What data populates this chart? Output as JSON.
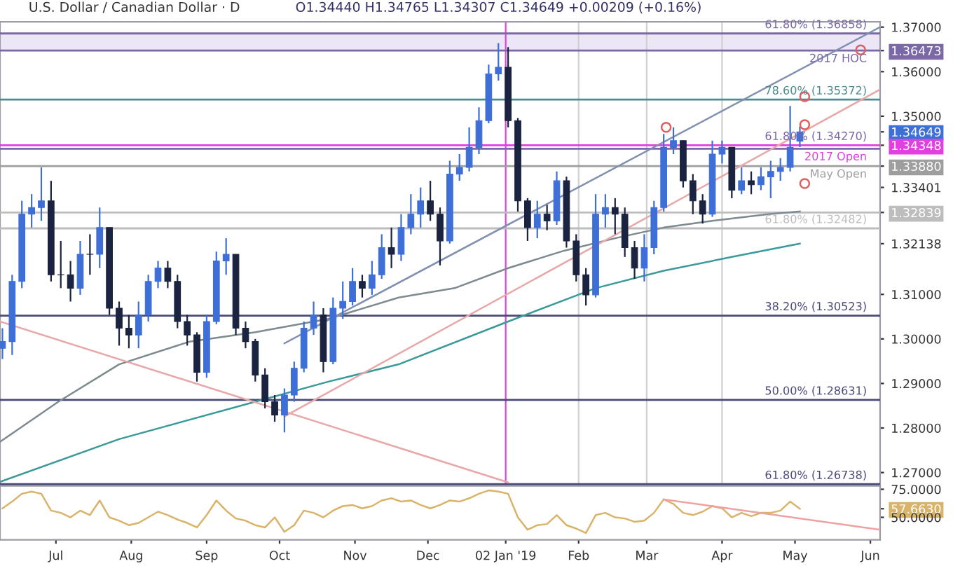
{
  "chart_data": [
    {
      "type": "candlestick",
      "title": "U.S. Dollar / Canadian Dollar · D",
      "subtitle": "O1.34440 H1.34765 L1.34307 C1.34649 +0.00209 (+0.16%)",
      "x": [
        "2018-06-09",
        "2018-06-13",
        "2018-06-17",
        "2018-06-21",
        "2018-06-25",
        "2018-06-29",
        "2018-07-03",
        "2018-07-07",
        "2018-07-11",
        "2018-07-15",
        "2018-07-19",
        "2018-07-23",
        "2018-07-27",
        "2018-07-31",
        "2018-08-04",
        "2018-08-08",
        "2018-08-12",
        "2018-08-16",
        "2018-08-20",
        "2018-08-24",
        "2018-08-28",
        "2018-09-01",
        "2018-09-05",
        "2018-09-09",
        "2018-09-13",
        "2018-09-17",
        "2018-09-21",
        "2018-09-25",
        "2018-09-29",
        "2018-10-03",
        "2018-10-07",
        "2018-10-11",
        "2018-10-15",
        "2018-10-19",
        "2018-10-23",
        "2018-10-27",
        "2018-10-31",
        "2018-11-04",
        "2018-11-08",
        "2018-11-12",
        "2018-11-16",
        "2018-11-20",
        "2018-11-24",
        "2018-11-28",
        "2018-12-02",
        "2018-12-06",
        "2018-12-10",
        "2018-12-14",
        "2018-12-18",
        "2018-12-22",
        "2018-12-26",
        "2018-12-30",
        "2019-01-03",
        "2019-01-07",
        "2019-01-11",
        "2019-01-15",
        "2019-01-19",
        "2019-01-23",
        "2019-01-27",
        "2019-01-31",
        "2019-02-04",
        "2019-02-08",
        "2019-02-12",
        "2019-02-16",
        "2019-02-20",
        "2019-02-24",
        "2019-02-28",
        "2019-03-04",
        "2019-03-08",
        "2019-03-12",
        "2019-03-16",
        "2019-03-20",
        "2019-03-24",
        "2019-03-28",
        "2019-04-01",
        "2019-04-05",
        "2019-04-09",
        "2019-04-13",
        "2019-04-17",
        "2019-04-21",
        "2019-04-25",
        "2019-04-29",
        "2019-05-03"
      ],
      "ohlc": [
        [
          1.2979,
          1.3024,
          1.2955,
          1.2994
        ],
        [
          1.2994,
          1.3144,
          1.2964,
          1.3129
        ],
        [
          1.3129,
          1.331,
          1.3114,
          1.328
        ],
        [
          1.328,
          1.3325,
          1.325,
          1.3295
        ],
        [
          1.3295,
          1.3385,
          1.3265,
          1.331
        ],
        [
          1.331,
          1.3355,
          1.3129,
          1.3144
        ],
        [
          1.3144,
          1.322,
          1.3114,
          1.3144
        ],
        [
          1.3144,
          1.3175,
          1.3084,
          1.3114
        ],
        [
          1.3114,
          1.322,
          1.3099,
          1.319
        ],
        [
          1.319,
          1.3235,
          1.3144,
          1.319
        ],
        [
          1.319,
          1.3295,
          1.3159,
          1.325
        ],
        [
          1.325,
          1.325,
          1.3054,
          1.3069
        ],
        [
          1.3069,
          1.3084,
          1.2985,
          1.3024
        ],
        [
          1.3024,
          1.3054,
          1.2979,
          1.3009
        ],
        [
          1.3009,
          1.3084,
          1.2979,
          1.3054
        ],
        [
          1.3054,
          1.3144,
          1.3039,
          1.3129
        ],
        [
          1.3129,
          1.3175,
          1.3114,
          1.3159
        ],
        [
          1.3159,
          1.3175,
          1.3114,
          1.3129
        ],
        [
          1.3129,
          1.3144,
          1.3024,
          1.3039
        ],
        [
          1.3039,
          1.3054,
          1.2985,
          1.3009
        ],
        [
          1.3009,
          1.3015,
          1.2904,
          1.2925
        ],
        [
          1.2925,
          1.3054,
          1.2913,
          1.3039
        ],
        [
          1.3039,
          1.3196,
          1.3033,
          1.3175
        ],
        [
          1.3175,
          1.3226,
          1.3144,
          1.319
        ],
        [
          1.319,
          1.319,
          1.3009,
          1.3024
        ],
        [
          1.3024,
          1.3039,
          1.2979,
          1.2994
        ],
        [
          1.2994,
          1.3,
          1.2904,
          1.2919
        ],
        [
          1.2919,
          1.2934,
          1.2844,
          1.2859
        ],
        [
          1.2859,
          1.2874,
          1.2814,
          1.2829
        ],
        [
          1.2829,
          1.2889,
          1.279,
          1.2874
        ],
        [
          1.2874,
          1.2949,
          1.2859,
          1.2934
        ],
        [
          1.2934,
          1.3039,
          1.2925,
          1.3024
        ],
        [
          1.3024,
          1.3084,
          1.3009,
          1.3054
        ],
        [
          1.3054,
          1.3069,
          1.2925,
          1.2949
        ],
        [
          1.2949,
          1.3093,
          1.2943,
          1.3069
        ],
        [
          1.3069,
          1.3129,
          1.3045,
          1.3084
        ],
        [
          1.3084,
          1.3159,
          1.3075,
          1.3129
        ],
        [
          1.3129,
          1.3144,
          1.3093,
          1.3114
        ],
        [
          1.3114,
          1.3175,
          1.3099,
          1.3144
        ],
        [
          1.3144,
          1.3235,
          1.3135,
          1.3205
        ],
        [
          1.3205,
          1.325,
          1.3159,
          1.319
        ],
        [
          1.319,
          1.328,
          1.3175,
          1.325
        ],
        [
          1.325,
          1.3325,
          1.3235,
          1.328
        ],
        [
          1.328,
          1.334,
          1.325,
          1.331
        ],
        [
          1.331,
          1.3355,
          1.3265,
          1.328
        ],
        [
          1.328,
          1.3295,
          1.3165,
          1.322
        ],
        [
          1.322,
          1.34,
          1.3214,
          1.337
        ],
        [
          1.337,
          1.3415,
          1.3355,
          1.3385
        ],
        [
          1.3385,
          1.3475,
          1.3376,
          1.343
        ],
        [
          1.343,
          1.352,
          1.3415,
          1.349
        ],
        [
          1.349,
          1.3616,
          1.3484,
          1.3595
        ],
        [
          1.3595,
          1.3664,
          1.358,
          1.361
        ],
        [
          1.361,
          1.3655,
          1.3475,
          1.349
        ],
        [
          1.349,
          1.3496,
          1.3286,
          1.331
        ],
        [
          1.331,
          1.3316,
          1.322,
          1.325
        ],
        [
          1.325,
          1.331,
          1.3226,
          1.328
        ],
        [
          1.328,
          1.3301,
          1.3244,
          1.3265
        ],
        [
          1.3265,
          1.3376,
          1.3256,
          1.3355
        ],
        [
          1.3355,
          1.3364,
          1.3205,
          1.322
        ],
        [
          1.322,
          1.3235,
          1.3129,
          1.3144
        ],
        [
          1.3144,
          1.3159,
          1.3075,
          1.3099
        ],
        [
          1.3099,
          1.3325,
          1.3093,
          1.328
        ],
        [
          1.328,
          1.3325,
          1.325,
          1.3295
        ],
        [
          1.3295,
          1.3316,
          1.3235,
          1.328
        ],
        [
          1.328,
          1.3295,
          1.3184,
          1.3205
        ],
        [
          1.3205,
          1.322,
          1.3135,
          1.3159
        ],
        [
          1.3159,
          1.3235,
          1.3129,
          1.3205
        ],
        [
          1.3205,
          1.331,
          1.319,
          1.3295
        ],
        [
          1.3295,
          1.346,
          1.3286,
          1.343
        ],
        [
          1.343,
          1.3475,
          1.3415,
          1.3445
        ],
        [
          1.3445,
          1.3445,
          1.334,
          1.3355
        ],
        [
          1.3355,
          1.337,
          1.328,
          1.331
        ],
        [
          1.331,
          1.3325,
          1.3259,
          1.328
        ],
        [
          1.328,
          1.3445,
          1.3274,
          1.3415
        ],
        [
          1.3415,
          1.3445,
          1.3394,
          1.343
        ],
        [
          1.343,
          1.343,
          1.3316,
          1.3334
        ],
        [
          1.3334,
          1.3385,
          1.3325,
          1.3355
        ],
        [
          1.3355,
          1.3376,
          1.3325,
          1.3346
        ],
        [
          1.3346,
          1.3385,
          1.3334,
          1.3364
        ],
        [
          1.3364,
          1.34,
          1.3316,
          1.3376
        ],
        [
          1.3376,
          1.3406,
          1.3355,
          1.3385
        ],
        [
          1.3385,
          1.3523,
          1.3376,
          1.343
        ],
        [
          1.3444,
          1.34765,
          1.34307,
          1.34649
        ]
      ],
      "colors": [
        "#3d6fd6",
        "#3d6fd6",
        "#3d6fd6",
        "#3d6fd6",
        "#3d6fd6",
        "#1a2340",
        "#1a2340",
        "#1a2340",
        "#3d6fd6",
        "#1a2340",
        "#3d6fd6",
        "#1a2340",
        "#1a2340",
        "#1a2340",
        "#3d6fd6",
        "#3d6fd6",
        "#3d6fd6",
        "#1a2340",
        "#1a2340",
        "#1a2340",
        "#1a2340",
        "#3d6fd6",
        "#3d6fd6",
        "#3d6fd6",
        "#1a2340",
        "#1a2340",
        "#1a2340",
        "#1a2340",
        "#1a2340",
        "#3d6fd6",
        "#3d6fd6",
        "#3d6fd6",
        "#3d6fd6",
        "#1a2340",
        "#3d6fd6",
        "#3d6fd6",
        "#3d6fd6",
        "#1a2340",
        "#3d6fd6",
        "#3d6fd6",
        "#1a2340",
        "#3d6fd6",
        "#3d6fd6",
        "#3d6fd6",
        "#1a2340",
        "#1a2340",
        "#3d6fd6",
        "#3d6fd6",
        "#3d6fd6",
        "#3d6fd6",
        "#3d6fd6",
        "#3d6fd6",
        "#1a2340",
        "#1a2340",
        "#1a2340",
        "#3d6fd6",
        "#1a2340",
        "#3d6fd6",
        "#1a2340",
        "#1a2340",
        "#1a2340",
        "#3d6fd6",
        "#3d6fd6",
        "#1a2340",
        "#1a2340",
        "#1a2340",
        "#3d6fd6",
        "#3d6fd6",
        "#3d6fd6",
        "#3d6fd6",
        "#1a2340",
        "#1a2340",
        "#1a2340",
        "#3d6fd6",
        "#3d6fd6",
        "#1a2340",
        "#3d6fd6",
        "#1a2340",
        "#3d6fd6",
        "#3d6fd6",
        "#3d6fd6",
        "#3d6fd6",
        "#3d6fd6"
      ],
      "series": [
        {
          "type": "line",
          "color": "#7d8a8f",
          "x": [
            "2018-06-08",
            "2018-07-02",
            "2018-07-27",
            "2018-08-25",
            "2018-09-21",
            "2018-10-21",
            "2018-11-19",
            "2018-12-12",
            "2019-01-03",
            "2019-01-26",
            "2019-02-16",
            "2019-03-08",
            "2019-03-28",
            "2019-04-20",
            "2019-05-03"
          ],
          "values": [
            1.2769,
            1.2859,
            1.2943,
            1.2994,
            1.3015,
            1.3045,
            1.3093,
            1.3114,
            1.3159,
            1.3198,
            1.3226,
            1.325,
            1.3265,
            1.328,
            1.3286
          ]
        },
        {
          "type": "line",
          "color": "#3a9a9a",
          "x": [
            "2018-06-08",
            "2018-07-27",
            "2018-09-21",
            "2018-10-21",
            "2018-11-19",
            "2019-01-03",
            "2019-02-08",
            "2019-03-08",
            "2019-04-05",
            "2019-05-03"
          ],
          "values": [
            1.2679,
            1.2775,
            1.2859,
            1.2904,
            1.2943,
            1.3039,
            1.3114,
            1.3153,
            1.3184,
            1.3214
          ]
        },
        {
          "type": "line",
          "color": "#e8a8a8",
          "x": [
            "2018-06-08",
            "2019-01-03"
          ],
          "values": [
            1.3039,
            1.2678
          ]
        },
        {
          "type": "line",
          "color": "#e8a8a8",
          "x": [
            "2018-10-03",
            "2019-06-05"
          ],
          "values": [
            1.2826,
            1.356
          ]
        },
        {
          "type": "line",
          "color": "#8090b0",
          "x": [
            "2018-10-03",
            "2019-06-05"
          ],
          "values": [
            1.299,
            1.37
          ]
        },
        {
          "type": "scatter",
          "marker": "circle",
          "color": "#e06060",
          "x": [
            "2019-03-09",
            "2019-05-05",
            "2019-05-05",
            "2019-05-05",
            "2019-05-28"
          ],
          "values": [
            1.3475,
            1.3544,
            1.3481,
            1.3349,
            1.3649
          ]
        }
      ],
      "bands": [
        {
          "axis": "y",
          "from": 1.36473,
          "to": 1.36858,
          "color": "#ece6f7"
        }
      ],
      "ref_lines": [
        {
          "axis": "y",
          "value": 1.36858,
          "label": "61.80% (1.36858)",
          "color": "#7b68a6"
        },
        {
          "axis": "y",
          "value": 1.36473,
          "label": "2017 HOC",
          "color": "#7b68a6"
        },
        {
          "axis": "y",
          "value": 1.35372,
          "label": "78.60% (1.35372)",
          "color": "#4e8c8c"
        },
        {
          "axis": "y",
          "value": 1.34348,
          "label": "2017 Open",
          "color": "#e040e0"
        },
        {
          "axis": "y",
          "value": 1.3427,
          "label": "61.80% (1.34270)",
          "color": "#7b68a6"
        },
        {
          "axis": "y",
          "value": 1.3388,
          "label": "May Open",
          "color": "#9e9e9e"
        },
        {
          "axis": "y",
          "value": 1.32839,
          "color": "#bdbdbd"
        },
        {
          "axis": "y",
          "value": 1.32482,
          "label": "61.80% (1.32482)",
          "color": "#bdbdbd"
        },
        {
          "axis": "y",
          "value": 1.30523,
          "label": "38.20% (1.30523)",
          "color": "#4a4a7a"
        },
        {
          "axis": "y",
          "value": 1.28631,
          "label": "50.00% (1.28631)",
          "color": "#4a4a7a"
        },
        {
          "axis": "y",
          "value": 1.26738,
          "label": "61.80% (1.26738)",
          "color": "#4a4a7a"
        },
        {
          "axis": "x",
          "value": "2019-01-02",
          "color": "#e040e0"
        },
        {
          "axis": "x",
          "value": "2019-02-01",
          "color": "#d0d0d0"
        },
        {
          "axis": "x",
          "value": "2019-03-01",
          "color": "#d0d0d0"
        },
        {
          "axis": "x",
          "value": "2019-04-01",
          "color": "#d0d0d0"
        }
      ],
      "xlim": [
        "2018-06-08",
        "2019-06-05"
      ],
      "ylim": [
        1.267,
        1.3712
      ],
      "yticks": [
        {
          "value": 1.37,
          "label": "1.37000"
        },
        1.36473,
        {
          "value": 1.36,
          "label": "1.36000"
        },
        {
          "value": 1.35,
          "label": "1.35000"
        },
        1.34649,
        1.34348,
        {
          "value": 1.3388,
          "label": "1.33880"
        },
        1.33401,
        1.32839,
        1.32138,
        {
          "value": 1.31,
          "label": "1.31000"
        },
        {
          "value": 1.3,
          "label": "1.30000"
        },
        {
          "value": 1.29,
          "label": "1.29000"
        },
        {
          "value": 1.28,
          "label": "1.28000"
        },
        {
          "value": 1.27,
          "label": "1.27000"
        }
      ],
      "tick_labels": "y"
    },
    {
      "type": "line",
      "x": [
        "2018-06-09",
        "2018-06-13",
        "2018-06-17",
        "2018-06-21",
        "2018-06-25",
        "2018-06-29",
        "2018-07-03",
        "2018-07-07",
        "2018-07-11",
        "2018-07-15",
        "2018-07-19",
        "2018-07-23",
        "2018-07-27",
        "2018-07-31",
        "2018-08-04",
        "2018-08-08",
        "2018-08-12",
        "2018-08-16",
        "2018-08-20",
        "2018-08-24",
        "2018-08-28",
        "2018-09-01",
        "2018-09-05",
        "2018-09-09",
        "2018-09-13",
        "2018-09-17",
        "2018-09-21",
        "2018-09-25",
        "2018-09-29",
        "2018-10-03",
        "2018-10-07",
        "2018-10-11",
        "2018-10-15",
        "2018-10-19",
        "2018-10-23",
        "2018-10-27",
        "2018-10-31",
        "2018-11-04",
        "2018-11-08",
        "2018-11-12",
        "2018-11-16",
        "2018-11-20",
        "2018-11-24",
        "2018-11-28",
        "2018-12-02",
        "2018-12-06",
        "2018-12-10",
        "2018-12-14",
        "2018-12-18",
        "2018-12-22",
        "2018-12-26",
        "2018-12-30",
        "2019-01-03",
        "2019-01-07",
        "2019-01-11",
        "2019-01-15",
        "2019-01-19",
        "2019-01-23",
        "2019-01-27",
        "2019-01-31",
        "2019-02-04",
        "2019-02-08",
        "2019-02-12",
        "2019-02-16",
        "2019-02-20",
        "2019-02-24",
        "2019-02-28",
        "2019-03-04",
        "2019-03-08",
        "2019-03-12",
        "2019-03-16",
        "2019-03-20",
        "2019-03-24",
        "2019-03-28",
        "2019-04-01",
        "2019-04-05",
        "2019-04-09",
        "2019-04-13",
        "2019-04-17",
        "2019-04-21",
        "2019-04-25",
        "2019-04-29",
        "2019-05-03"
      ],
      "series": [
        {
          "color": "#d9b36a",
          "values": [
            58,
            64,
            71,
            73,
            71,
            56,
            54,
            50,
            56,
            52,
            65,
            50,
            47,
            43,
            45,
            50,
            55,
            52,
            48,
            45,
            41,
            52,
            65,
            56,
            49,
            47,
            43,
            41,
            50,
            37,
            43,
            56,
            54,
            50,
            56,
            60,
            61,
            58,
            60,
            65,
            67,
            64,
            65,
            61,
            58,
            61,
            65,
            64,
            67,
            71,
            74,
            73,
            71,
            50,
            39,
            43,
            44,
            52,
            43,
            40,
            36,
            52,
            54,
            50,
            49,
            46,
            47,
            54,
            66,
            62,
            54,
            52,
            55,
            60,
            58,
            50,
            54,
            51,
            54,
            54,
            56,
            64,
            57.663
          ]
        },
        {
          "color": "#f0a0a0",
          "x": [
            "2019-03-08",
            "2019-06-05"
          ],
          "values": [
            66,
            39
          ]
        }
      ],
      "xlim": [
        "2018-06-08",
        "2019-06-05"
      ],
      "ylim": [
        30,
        78
      ],
      "yticks": [
        {
          "value": 75,
          "label": "75.0000"
        },
        {
          "value": 57.663,
          "label": "57.6630"
        },
        {
          "value": 50,
          "label": "50.0000"
        }
      ],
      "xticks": [
        {
          "value": "2018-07-01",
          "label": "Jul"
        },
        {
          "value": "2018-08-01",
          "label": "Aug"
        },
        {
          "value": "2018-09-01",
          "label": "Sep"
        },
        {
          "value": "2018-10-01",
          "label": "Oct"
        },
        {
          "value": "2018-11-01",
          "label": "Nov"
        },
        {
          "value": "2018-12-01",
          "label": "Dec"
        },
        {
          "value": "2019-01-02",
          "label": "02 Jan '19"
        },
        {
          "value": "2019-02-01",
          "label": "Feb"
        },
        {
          "value": "2019-03-01",
          "label": "Mar"
        },
        {
          "value": "2019-04-01",
          "label": "Apr"
        },
        {
          "value": "2019-05-01",
          "label": "May"
        },
        {
          "value": "2019-06-01",
          "label": "Jun"
        }
      ]
    }
  ]
}
